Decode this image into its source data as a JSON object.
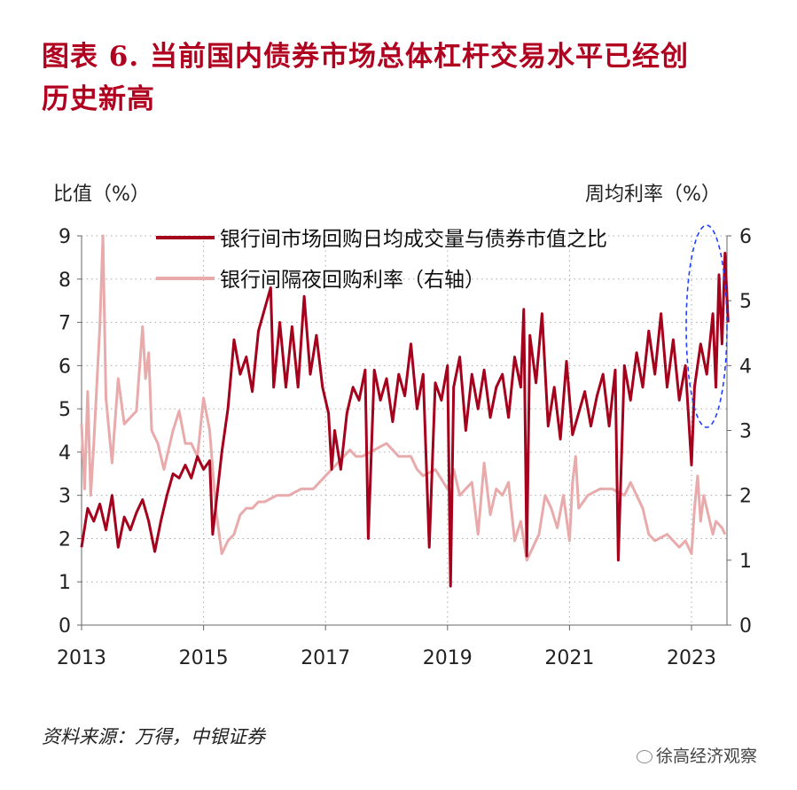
{
  "title_line1": "图表 6. 当前国内债券市场总体杠杆交易水平已经创",
  "title_line2": "历史新高",
  "source": "资料来源：万得，中银证券",
  "watermark": "徐高经济观察",
  "chart_data": {
    "type": "line",
    "left_axis_label": "比值（%）",
    "right_axis_label": "周均利率（%）",
    "ylim_left": [
      0,
      9
    ],
    "yticks_left": [
      0,
      1,
      2,
      3,
      4,
      5,
      6,
      7,
      8,
      9
    ],
    "ylim_right": [
      0,
      6
    ],
    "yticks_right": [
      0,
      1,
      2,
      3,
      4,
      5,
      6
    ],
    "xlim": [
      2013,
      2023.7
    ],
    "xticks": [
      2013,
      2015,
      2017,
      2019,
      2021,
      2023
    ],
    "grid": true,
    "legend": "top",
    "colors": {
      "ratio": "#a5001c",
      "rate": "#e8aaaa",
      "annotation": "#1f3fff"
    },
    "series": [
      {
        "name": "银行间市场回购日均成交量与债券市值之比",
        "axis": "left",
        "points": [
          [
            2013.0,
            1.8
          ],
          [
            2013.1,
            2.7
          ],
          [
            2013.2,
            2.4
          ],
          [
            2013.3,
            2.8
          ],
          [
            2013.4,
            2.2
          ],
          [
            2013.5,
            3.0
          ],
          [
            2013.6,
            1.8
          ],
          [
            2013.7,
            2.5
          ],
          [
            2013.8,
            2.2
          ],
          [
            2013.9,
            2.6
          ],
          [
            2014.0,
            2.9
          ],
          [
            2014.1,
            2.4
          ],
          [
            2014.2,
            1.7
          ],
          [
            2014.3,
            2.4
          ],
          [
            2014.4,
            3.0
          ],
          [
            2014.5,
            3.5
          ],
          [
            2014.6,
            3.4
          ],
          [
            2014.7,
            3.7
          ],
          [
            2014.8,
            3.4
          ],
          [
            2014.9,
            3.9
          ],
          [
            2015.0,
            3.6
          ],
          [
            2015.1,
            3.8
          ],
          [
            2015.15,
            2.1
          ],
          [
            2015.3,
            4.0
          ],
          [
            2015.4,
            5.0
          ],
          [
            2015.5,
            6.6
          ],
          [
            2015.6,
            5.8
          ],
          [
            2015.7,
            6.2
          ],
          [
            2015.8,
            5.4
          ],
          [
            2015.9,
            6.8
          ],
          [
            2016.0,
            7.3
          ],
          [
            2016.1,
            7.8
          ],
          [
            2016.15,
            5.5
          ],
          [
            2016.25,
            7.0
          ],
          [
            2016.35,
            5.5
          ],
          [
            2016.45,
            6.9
          ],
          [
            2016.55,
            5.5
          ],
          [
            2016.65,
            7.6
          ],
          [
            2016.75,
            5.8
          ],
          [
            2016.85,
            6.7
          ],
          [
            2016.95,
            5.5
          ],
          [
            2017.05,
            4.9
          ],
          [
            2017.1,
            3.6
          ],
          [
            2017.15,
            4.5
          ],
          [
            2017.25,
            3.6
          ],
          [
            2017.35,
            4.9
          ],
          [
            2017.45,
            5.5
          ],
          [
            2017.55,
            5.2
          ],
          [
            2017.65,
            5.9
          ],
          [
            2017.7,
            2.0
          ],
          [
            2017.8,
            5.9
          ],
          [
            2017.9,
            5.2
          ],
          [
            2018.0,
            5.7
          ],
          [
            2018.1,
            4.7
          ],
          [
            2018.2,
            5.8
          ],
          [
            2018.3,
            5.3
          ],
          [
            2018.4,
            6.5
          ],
          [
            2018.5,
            5.0
          ],
          [
            2018.6,
            5.8
          ],
          [
            2018.7,
            1.8
          ],
          [
            2018.8,
            5.6
          ],
          [
            2018.9,
            5.2
          ],
          [
            2019.0,
            6.0
          ],
          [
            2019.05,
            0.9
          ],
          [
            2019.1,
            5.5
          ],
          [
            2019.2,
            6.2
          ],
          [
            2019.3,
            4.5
          ],
          [
            2019.4,
            5.8
          ],
          [
            2019.5,
            5.0
          ],
          [
            2019.6,
            5.9
          ],
          [
            2019.7,
            4.8
          ],
          [
            2019.8,
            5.5
          ],
          [
            2019.9,
            5.8
          ],
          [
            2020.0,
            4.8
          ],
          [
            2020.1,
            6.2
          ],
          [
            2020.2,
            5.5
          ],
          [
            2020.25,
            7.3
          ],
          [
            2020.3,
            1.6
          ],
          [
            2020.35,
            6.7
          ],
          [
            2020.45,
            5.6
          ],
          [
            2020.55,
            7.2
          ],
          [
            2020.65,
            4.6
          ],
          [
            2020.75,
            5.5
          ],
          [
            2020.85,
            4.3
          ],
          [
            2020.95,
            6.1
          ],
          [
            2021.05,
            4.4
          ],
          [
            2021.15,
            4.9
          ],
          [
            2021.25,
            5.4
          ],
          [
            2021.35,
            4.6
          ],
          [
            2021.45,
            5.3
          ],
          [
            2021.55,
            5.8
          ],
          [
            2021.65,
            4.6
          ],
          [
            2021.75,
            5.9
          ],
          [
            2021.8,
            1.5
          ],
          [
            2021.9,
            6.0
          ],
          [
            2022.0,
            5.2
          ],
          [
            2022.1,
            6.3
          ],
          [
            2022.2,
            5.5
          ],
          [
            2022.3,
            6.8
          ],
          [
            2022.4,
            5.8
          ],
          [
            2022.5,
            7.2
          ],
          [
            2022.6,
            5.5
          ],
          [
            2022.7,
            6.6
          ],
          [
            2022.8,
            5.2
          ],
          [
            2022.9,
            6.0
          ],
          [
            2023.0,
            3.7
          ],
          [
            2023.05,
            5.5
          ],
          [
            2023.15,
            6.5
          ],
          [
            2023.25,
            5.8
          ],
          [
            2023.35,
            7.2
          ],
          [
            2023.4,
            5.5
          ],
          [
            2023.45,
            8.1
          ],
          [
            2023.5,
            6.5
          ],
          [
            2023.55,
            8.6
          ],
          [
            2023.6,
            7.0
          ]
        ]
      },
      {
        "name": "银行间隔夜回购利率（右轴）",
        "axis": "right",
        "points": [
          [
            2013.0,
            3.1
          ],
          [
            2013.05,
            2.1
          ],
          [
            2013.1,
            3.6
          ],
          [
            2013.15,
            2.0
          ],
          [
            2013.2,
            2.8
          ],
          [
            2013.3,
            4.6
          ],
          [
            2013.35,
            6.0
          ],
          [
            2013.4,
            3.5
          ],
          [
            2013.5,
            2.5
          ],
          [
            2013.6,
            3.8
          ],
          [
            2013.7,
            3.1
          ],
          [
            2013.8,
            3.2
          ],
          [
            2013.9,
            3.3
          ],
          [
            2014.0,
            4.6
          ],
          [
            2014.05,
            3.8
          ],
          [
            2014.1,
            4.2
          ],
          [
            2014.15,
            3.0
          ],
          [
            2014.25,
            2.8
          ],
          [
            2014.35,
            2.4
          ],
          [
            2014.5,
            3.0
          ],
          [
            2014.6,
            3.3
          ],
          [
            2014.7,
            2.8
          ],
          [
            2014.8,
            2.8
          ],
          [
            2014.9,
            2.6
          ],
          [
            2015.0,
            3.5
          ],
          [
            2015.1,
            3.0
          ],
          [
            2015.2,
            1.8
          ],
          [
            2015.3,
            1.1
          ],
          [
            2015.4,
            1.3
          ],
          [
            2015.5,
            1.4
          ],
          [
            2015.6,
            1.7
          ],
          [
            2015.7,
            1.8
          ],
          [
            2015.8,
            1.8
          ],
          [
            2015.9,
            1.9
          ],
          [
            2016.0,
            1.9
          ],
          [
            2016.2,
            2.0
          ],
          [
            2016.4,
            2.0
          ],
          [
            2016.6,
            2.1
          ],
          [
            2016.8,
            2.1
          ],
          [
            2017.0,
            2.3
          ],
          [
            2017.2,
            2.5
          ],
          [
            2017.4,
            2.7
          ],
          [
            2017.5,
            2.6
          ],
          [
            2017.6,
            2.6
          ],
          [
            2017.8,
            2.7
          ],
          [
            2018.0,
            2.8
          ],
          [
            2018.2,
            2.6
          ],
          [
            2018.4,
            2.6
          ],
          [
            2018.5,
            2.4
          ],
          [
            2018.6,
            2.3
          ],
          [
            2018.8,
            2.4
          ],
          [
            2019.0,
            2.1
          ],
          [
            2019.1,
            2.4
          ],
          [
            2019.2,
            2.0
          ],
          [
            2019.4,
            2.2
          ],
          [
            2019.5,
            1.4
          ],
          [
            2019.6,
            2.5
          ],
          [
            2019.7,
            1.7
          ],
          [
            2019.8,
            2.1
          ],
          [
            2019.9,
            2.0
          ],
          [
            2020.0,
            2.2
          ],
          [
            2020.1,
            1.3
          ],
          [
            2020.2,
            1.6
          ],
          [
            2020.3,
            1.0
          ],
          [
            2020.4,
            1.2
          ],
          [
            2020.5,
            1.4
          ],
          [
            2020.6,
            2.0
          ],
          [
            2020.7,
            1.8
          ],
          [
            2020.8,
            1.5
          ],
          [
            2020.9,
            2.0
          ],
          [
            2021.0,
            1.3
          ],
          [
            2021.05,
            2.2
          ],
          [
            2021.1,
            2.6
          ],
          [
            2021.15,
            1.8
          ],
          [
            2021.3,
            2.0
          ],
          [
            2021.5,
            2.1
          ],
          [
            2021.7,
            2.1
          ],
          [
            2021.9,
            2.0
          ],
          [
            2022.0,
            2.2
          ],
          [
            2022.2,
            1.8
          ],
          [
            2022.3,
            1.4
          ],
          [
            2022.4,
            1.3
          ],
          [
            2022.6,
            1.4
          ],
          [
            2022.8,
            1.2
          ],
          [
            2022.9,
            1.3
          ],
          [
            2023.0,
            1.1
          ],
          [
            2023.05,
            1.8
          ],
          [
            2023.1,
            2.3
          ],
          [
            2023.15,
            1.6
          ],
          [
            2023.2,
            2.0
          ],
          [
            2023.3,
            1.6
          ],
          [
            2023.35,
            1.4
          ],
          [
            2023.4,
            1.6
          ],
          [
            2023.5,
            1.5
          ],
          [
            2023.55,
            1.4
          ]
        ]
      }
    ]
  }
}
